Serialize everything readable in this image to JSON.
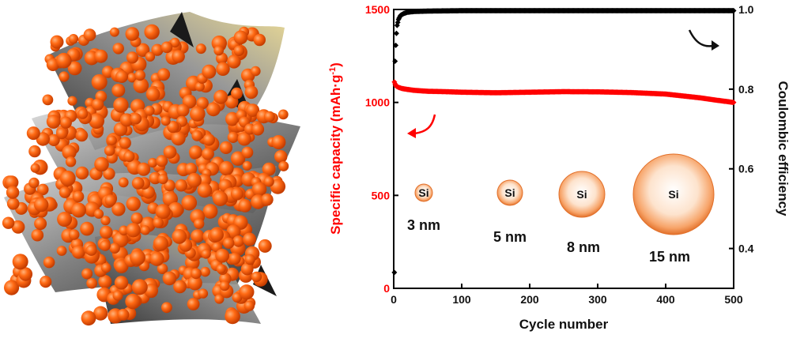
{
  "chart_data": {
    "type": "scatter",
    "xlabel": "Cycle number",
    "ylabel_left": "Specific capacity (mAh·g",
    "ylabel_left_sup": "-1",
    "ylabel_left_close": ")",
    "ylabel_right": "Coulombic efficiency",
    "xlim": [
      0,
      500
    ],
    "ylim_left": [
      0,
      1500
    ],
    "ylim_right": [
      0.3,
      1.0
    ],
    "x_ticks": [
      "0",
      "100",
      "200",
      "300",
      "400",
      "500"
    ],
    "y_left_ticks": [
      "0",
      "500",
      "1000",
      "1500"
    ],
    "y_right_ticks": [
      "0.4",
      "0.6",
      "0.8",
      "1.0"
    ],
    "colors": {
      "capacity": "#ff0000",
      "efficiency": "#000000",
      "left_axis": "#ff0000",
      "right_axis": "#000000"
    },
    "series": [
      {
        "axis": "left",
        "x": [
          1,
          2,
          3,
          5,
          8,
          12,
          20,
          30,
          50,
          75,
          100,
          150,
          200,
          250,
          300,
          350,
          400,
          425,
          450,
          475,
          500
        ],
        "y": [
          1110,
          1100,
          1090,
          1085,
          1080,
          1075,
          1070,
          1065,
          1060,
          1058,
          1055,
          1052,
          1055,
          1058,
          1057,
          1053,
          1045,
          1035,
          1025,
          1012,
          1000
        ]
      },
      {
        "axis": "right",
        "x": [
          1,
          2,
          3,
          4,
          5,
          7,
          10,
          15,
          20,
          30,
          50,
          100,
          200,
          300,
          400,
          500
        ],
        "y": [
          0.34,
          0.87,
          0.91,
          0.94,
          0.96,
          0.975,
          0.985,
          0.99,
          0.993,
          0.995,
          0.996,
          0.997,
          0.997,
          0.997,
          0.997,
          0.997
        ]
      }
    ],
    "particles": [
      {
        "label": "Si",
        "size": "3 nm"
      },
      {
        "label": "Si",
        "size": "5 nm"
      },
      {
        "label": "Si",
        "size": "8 nm"
      },
      {
        "label": "Si",
        "size": "15  nm"
      }
    ]
  }
}
